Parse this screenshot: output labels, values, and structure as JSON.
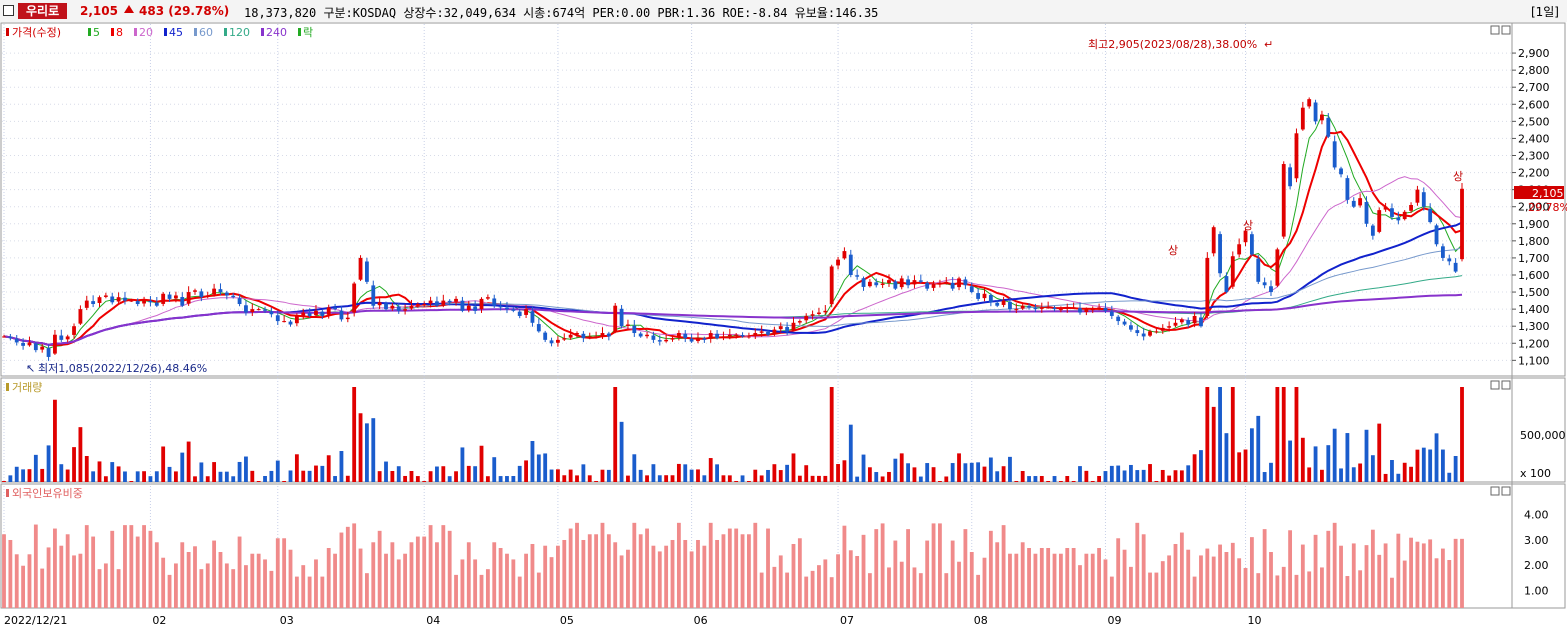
{
  "header": {
    "name": "우리로",
    "price": "2,105",
    "change": "483",
    "change_pct": "(29.78%)",
    "info": "18,373,820  구분:KOSDAQ 상장수:32,049,634 시총:674억 PER:0.00 PBR:1.36 ROE:-8.84 유보율:146.35",
    "period": "[1일]"
  },
  "legend": {
    "price_label": "가격(수정)",
    "ma": [
      {
        "label": "5",
        "color": "#22aa22"
      },
      {
        "label": "8",
        "color": "#ee0000"
      },
      {
        "label": "20",
        "color": "#cc66cc"
      },
      {
        "label": "45",
        "color": "#1122cc"
      },
      {
        "label": "60",
        "color": "#7799cc"
      },
      {
        "label": "120",
        "color": "#33aa88"
      },
      {
        "label": "240",
        "color": "#8833cc"
      }
    ],
    "drop_label": "락",
    "volume_label": "거래량",
    "foreign_label": "외국인보유비중"
  },
  "annotations": {
    "high": "최고2,905(2023/08/28),38.00%",
    "low": "최저1,085(2022/12/26),48.46%",
    "upper_limit": "상",
    "last_price": "2,105",
    "last_pct": "29.78%"
  },
  "chart_data": [
    {
      "type": "candlestick",
      "title": "가격(수정)",
      "x_tick_labels": [
        "2022/12/21",
        "02",
        "03",
        "04",
        "05",
        "06",
        "07",
        "08",
        "09",
        "10"
      ],
      "y_ticks": [
        1100,
        1200,
        1300,
        1400,
        1500,
        1600,
        1700,
        1800,
        1900,
        2000,
        2100,
        2200,
        2300,
        2400,
        2500,
        2600,
        2700,
        2800,
        2900
      ],
      "y_tick_labels": [
        "1,100",
        "1,200",
        "1,300",
        "1,400",
        "1,500",
        "1,600",
        "1,700",
        "1,800",
        "1,900",
        "2,000",
        "2,100",
        "2,200",
        "2,300",
        "2,400",
        "2,500",
        "2,600",
        "2,700",
        "2,800",
        "2,900"
      ],
      "ylim": [
        1020,
        3000
      ],
      "series_closes": [
        1240,
        1230,
        1205,
        1185,
        1205,
        1160,
        1180,
        1120,
        1250,
        1220,
        1240,
        1300,
        1400,
        1450,
        1430,
        1470,
        1480,
        1440,
        1470,
        1450,
        1450,
        1430,
        1450,
        1440,
        1420,
        1490,
        1460,
        1480,
        1420,
        1500,
        1510,
        1470,
        1480,
        1520,
        1500,
        1480,
        1470,
        1430,
        1380,
        1400,
        1400,
        1390,
        1370,
        1330,
        1330,
        1310,
        1360,
        1380,
        1360,
        1390,
        1360,
        1410,
        1400,
        1340,
        1350,
        1550,
        1700,
        1560,
        1420,
        1440,
        1400,
        1420,
        1390,
        1400,
        1420,
        1430,
        1430,
        1450,
        1420,
        1450,
        1440,
        1460,
        1390,
        1420,
        1390,
        1460,
        1470,
        1420,
        1410,
        1400,
        1390,
        1360,
        1400,
        1320,
        1270,
        1220,
        1200,
        1220,
        1230,
        1250,
        1260,
        1230,
        1240,
        1240,
        1260,
        1240,
        1420,
        1300,
        1310,
        1260,
        1240,
        1250,
        1220,
        1210,
        1220,
        1230,
        1260,
        1230,
        1210,
        1230,
        1220,
        1260,
        1230,
        1240,
        1250,
        1250,
        1240,
        1240,
        1260,
        1270,
        1250,
        1280,
        1300,
        1270,
        1320,
        1330,
        1360,
        1370,
        1380,
        1390,
        1650,
        1690,
        1740,
        1600,
        1590,
        1530,
        1560,
        1540,
        1550,
        1570,
        1520,
        1580,
        1540,
        1570,
        1560,
        1520,
        1550,
        1550,
        1560,
        1520,
        1580,
        1540,
        1500,
        1460,
        1490,
        1440,
        1420,
        1450,
        1400,
        1400,
        1420,
        1410,
        1400,
        1410,
        1410,
        1400,
        1400,
        1410,
        1410,
        1380,
        1400,
        1400,
        1410,
        1390,
        1360,
        1330,
        1310,
        1280,
        1260,
        1240,
        1270,
        1270,
        1290,
        1300,
        1320,
        1340,
        1310,
        1360,
        1300,
        1700,
        1880,
        1610,
        1500,
        1710,
        1780,
        1860,
        1720,
        1560,
        1540,
        1500,
        1750,
        2250,
        2120,
        2430,
        2580,
        2630,
        2500,
        2540,
        2410,
        2230,
        2190,
        2040,
        2000,
        2050,
        1900,
        1830,
        1980,
        2000,
        1940,
        1920,
        1970,
        2010,
        2100,
        2000,
        1910,
        1780,
        1700,
        1680,
        1620,
        2105
      ],
      "series": [
        {
          "name": "5"
        },
        {
          "name": "8"
        },
        {
          "name": "20"
        },
        {
          "name": "45"
        },
        {
          "name": "60"
        },
        {
          "name": "120"
        },
        {
          "name": "240"
        }
      ]
    },
    {
      "type": "bar",
      "title": "거래량",
      "y_tick_labels": [
        "500,000",
        "x 100"
      ]
    },
    {
      "type": "bar",
      "title": "외국인보유비중",
      "y_ticks": [
        1.0,
        2.0,
        3.0,
        4.0
      ],
      "y_tick_labels": [
        "1.00",
        "2.00",
        "3.00",
        "4.00"
      ],
      "ylim": [
        0.3,
        4.9
      ]
    }
  ]
}
